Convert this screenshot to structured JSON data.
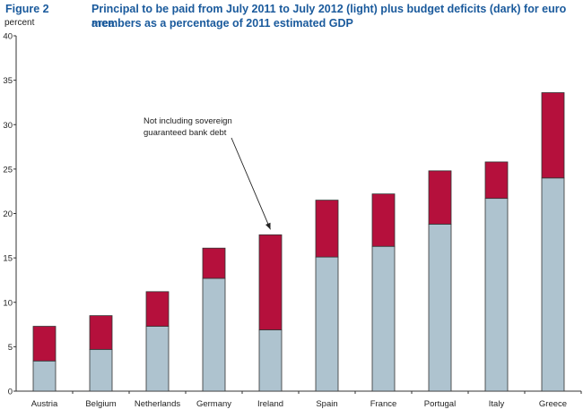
{
  "figure_label": "Figure 2",
  "title_line1": "Principal to be paid from July 2011 to July 2012 (light) plus budget deficits (dark) for euro area",
  "title_line2": "members as a percentage of 2011 estimated GDP",
  "chart_data": {
    "type": "bar",
    "stacked": true,
    "title": "Principal to be paid from July 2011 to July 2012 (light) plus budget deficits (dark) for euro area members as a percentage of 2011 estimated GDP",
    "xlabel": "",
    "ylabel": "percent",
    "ylim": [
      0,
      40
    ],
    "yticks": [
      0,
      5,
      10,
      15,
      20,
      25,
      30,
      35,
      40
    ],
    "grid": false,
    "categories": [
      "Austria",
      "Belgium",
      "Netherlands",
      "Germany",
      "Ireland",
      "Spain",
      "France",
      "Portugal",
      "Italy",
      "Greece"
    ],
    "series": [
      {
        "values": [
          3.4,
          4.7,
          7.3,
          12.7,
          6.9,
          15.1,
          16.3,
          18.8,
          21.7,
          24.0
        ],
        "color": "#aec3cf"
      },
      {
        "values": [
          3.9,
          3.8,
          3.9,
          3.4,
          10.7,
          6.4,
          5.9,
          6.0,
          4.1,
          9.6
        ],
        "color": "#b5103c"
      }
    ],
    "annotation": {
      "lines": [
        "Not including sovereign",
        "guaranteed bank debt"
      ],
      "target_category": "Ireland"
    }
  }
}
